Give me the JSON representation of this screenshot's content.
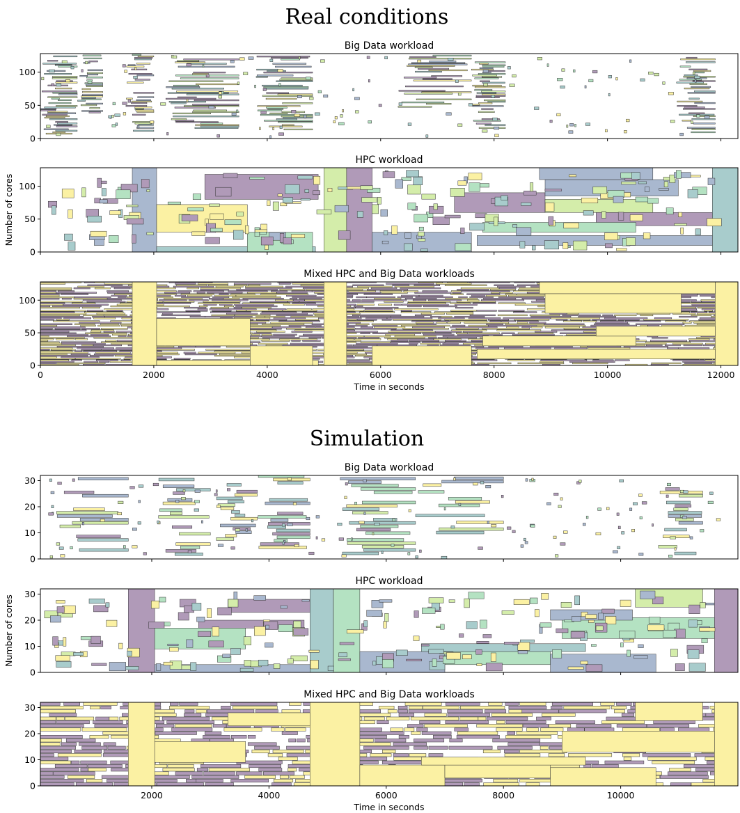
{
  "colors": {
    "purple": "#b09ab8",
    "blue": "#a9b8cf",
    "teal": "#a8cccc",
    "green": "#b4e2c2",
    "lime": "#d4edaa",
    "yellow": "#fbf1a3",
    "edge": "#333333"
  },
  "chart_data": [
    {
      "section": "Real conditions",
      "type": "gantt",
      "title": "Big Data workload",
      "ylabel": "",
      "xlabel": "",
      "xlim": [
        0,
        12300
      ],
      "ylim": [
        0,
        128
      ],
      "xticks": [
        0,
        2000,
        4000,
        6000,
        8000,
        10000,
        12000
      ],
      "xtick_labels": [],
      "yticks": [
        0,
        50,
        100
      ],
      "ytick_labels": [
        "0",
        "50",
        "100"
      ],
      "grid": false
    },
    {
      "section": "Real conditions",
      "type": "gantt",
      "title": "HPC workload",
      "ylabel": "Number of cores",
      "xlabel": "",
      "xlim": [
        0,
        12300
      ],
      "ylim": [
        0,
        128
      ],
      "xticks": [
        0,
        2000,
        4000,
        6000,
        8000,
        10000,
        12000
      ],
      "xtick_labels": [],
      "yticks": [
        0,
        50,
        100
      ],
      "ytick_labels": [
        "0",
        "50",
        "100"
      ],
      "grid": false
    },
    {
      "section": "Real conditions",
      "type": "gantt",
      "title": "Mixed HPC and Big Data workloads",
      "ylabel": "",
      "xlabel": "Time in seconds",
      "xlim": [
        0,
        12300
      ],
      "ylim": [
        0,
        128
      ],
      "xticks": [
        0,
        2000,
        4000,
        6000,
        8000,
        10000,
        12000
      ],
      "xtick_labels": [
        "0",
        "2000",
        "4000",
        "6000",
        "8000",
        "10000",
        "12000"
      ],
      "yticks": [
        0,
        50,
        100
      ],
      "ytick_labels": [
        "0",
        "50",
        "100"
      ],
      "grid": false
    },
    {
      "section": "Simulation",
      "type": "gantt",
      "title": "Big Data workload",
      "ylabel": "",
      "xlabel": "",
      "xlim": [
        100,
        12000
      ],
      "ylim": [
        0,
        32
      ],
      "xticks": [
        2000,
        4000,
        6000,
        8000,
        10000
      ],
      "xtick_labels": [],
      "yticks": [
        0,
        10,
        20,
        30
      ],
      "ytick_labels": [
        "0",
        "10",
        "20",
        "30"
      ],
      "grid": false
    },
    {
      "section": "Simulation",
      "type": "gantt",
      "title": "HPC workload",
      "ylabel": "Number of cores",
      "xlabel": "",
      "xlim": [
        100,
        12000
      ],
      "ylim": [
        0,
        32
      ],
      "xticks": [
        2000,
        4000,
        6000,
        8000,
        10000
      ],
      "xtick_labels": [],
      "yticks": [
        0,
        10,
        20,
        30
      ],
      "ytick_labels": [
        "0",
        "10",
        "20",
        "30"
      ],
      "grid": false
    },
    {
      "section": "Simulation",
      "type": "gantt",
      "title": "Mixed HPC and Big Data workloads",
      "ylabel": "",
      "xlabel": "Time in seconds",
      "xlim": [
        100,
        12000
      ],
      "ylim": [
        0,
        32
      ],
      "xticks": [
        2000,
        4000,
        6000,
        8000,
        10000
      ],
      "xtick_labels": [
        "2000",
        "4000",
        "6000",
        "8000",
        "10000"
      ],
      "yticks": [
        0,
        10,
        20,
        30
      ],
      "ytick_labels": [
        "0",
        "10",
        "20",
        "30"
      ],
      "grid": false
    }
  ],
  "sections": {
    "real": "Real conditions",
    "sim": "Simulation"
  }
}
